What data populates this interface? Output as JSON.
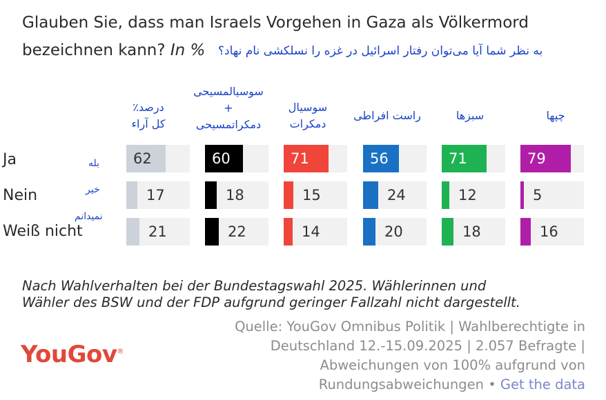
{
  "title": {
    "line1": "Glauben Sie, dass man Israels Vorgehen in Gaza als Völkermord",
    "line2": "bezeichnen kann?",
    "in_pct": "In %",
    "farsi": "به نظر شما آیا می‌توان رفتار اسرائیل در غزه را نسلکشی نام نهاد؟"
  },
  "chart_data": {
    "type": "table",
    "categories": [
      "Ja",
      "Nein",
      "Weiß nicht"
    ],
    "row_labels_fa": [
      "بله",
      "خیر",
      "نمیدانم"
    ],
    "series": [
      {
        "name": "درصد٪ کل آراء",
        "name_lines": [
          "درصد٪",
          "کل آراء"
        ],
        "color": "#cdd1da",
        "values": [
          62,
          17,
          21
        ]
      },
      {
        "name": "سوسیالمسیحی + دمکراتمسیحی",
        "name_lines": [
          "سوسیالمسیحی",
          "+",
          "دمکراتمسیحی"
        ],
        "color": "#000000",
        "values": [
          60,
          18,
          22
        ]
      },
      {
        "name": "سوسیال دمکرات",
        "name_lines": [
          "سوسیال",
          "دمکرات"
        ],
        "color": "#f0453a",
        "values": [
          71,
          15,
          14
        ]
      },
      {
        "name": "راست افراطی",
        "name_lines": [
          "راست افراطی"
        ],
        "color": "#1a71c4",
        "values": [
          56,
          24,
          20
        ]
      },
      {
        "name": "سبزها",
        "name_lines": [
          "سبزها"
        ],
        "color": "#1fb252",
        "values": [
          71,
          12,
          18
        ]
      },
      {
        "name": "چپها",
        "name_lines": [
          "چپها"
        ],
        "color": "#b01ea8",
        "values": [
          79,
          5,
          16
        ]
      }
    ],
    "ylim": [
      0,
      100
    ]
  },
  "footnote": {
    "line1": "Nach Wahlverhalten bei der Bundestagswahl 2025. Wählerinnen und",
    "line2": "Wähler des BSW und der FDP aufgrund geringer Fallzahl nicht dargestellt."
  },
  "brand": {
    "name": "YouGov",
    "mark": "®",
    "color": "#e2473a"
  },
  "source": {
    "line1": "Quelle: YouGov Omnibus Politik | Wahlberechtigte in",
    "line2": "Deutschland 12.-15.09.2025 | 2.057 Befragte |",
    "line3": "Abweichungen von 100% aufgrund von",
    "line4_prefix": "Rundungsabweichungen •",
    "link": "Get the data"
  }
}
